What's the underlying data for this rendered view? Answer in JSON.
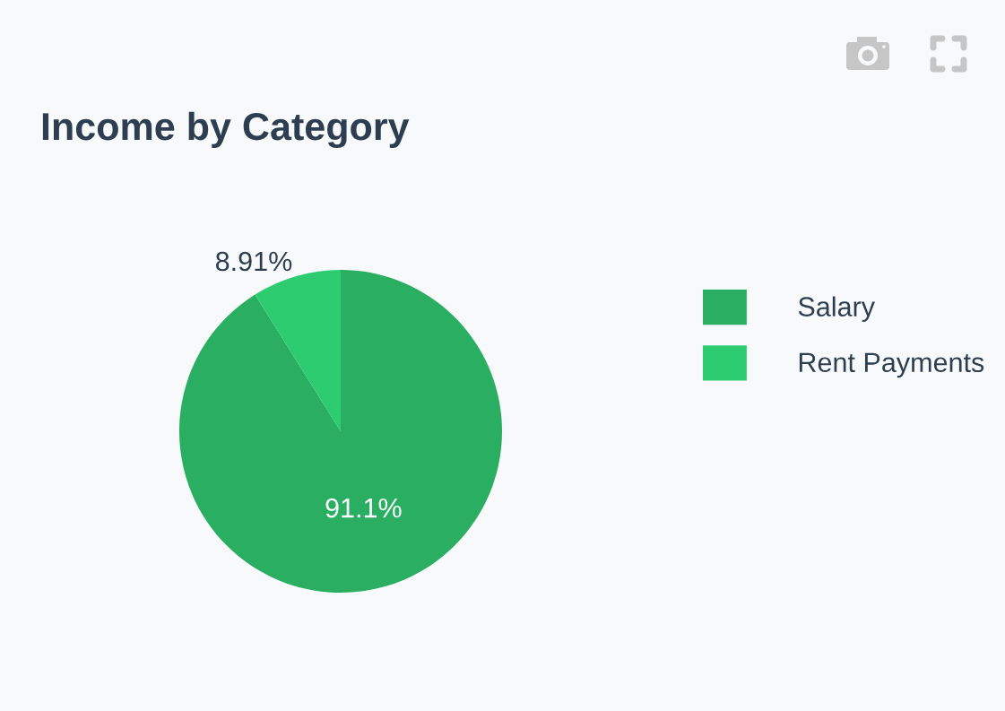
{
  "chart_data": {
    "type": "pie",
    "title": "Income by Category",
    "categories": [
      "Salary",
      "Rent Payments"
    ],
    "values": [
      91.09,
      8.91
    ],
    "value_labels": [
      "91.1%",
      "8.91%"
    ],
    "colors": [
      "#2aae62",
      "#2ecc71"
    ],
    "legend": "top right"
  }
}
